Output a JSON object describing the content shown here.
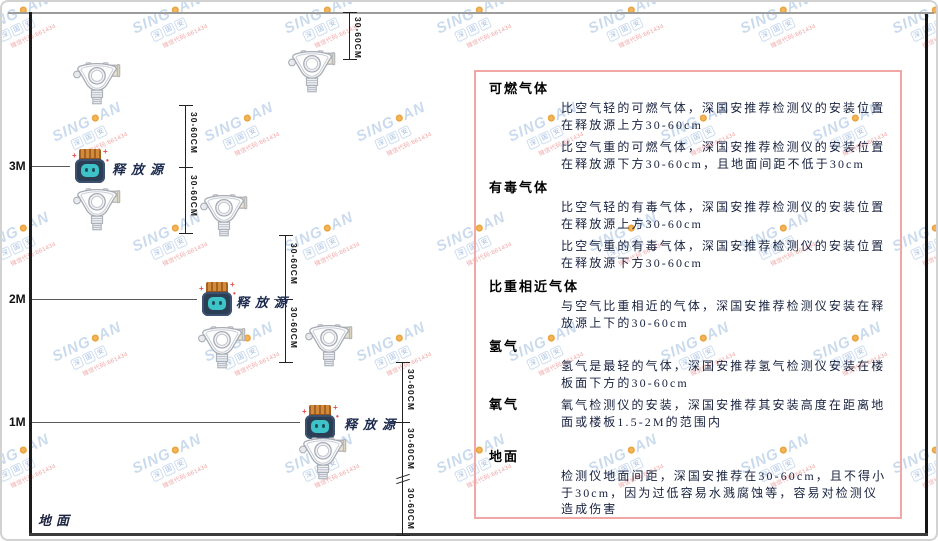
{
  "watermark": {
    "brand_prefix": "SING",
    "brand_suffix": "AN",
    "stamp_chars": [
      "深",
      "国",
      "安"
    ],
    "contact_code": "微信代码:661434"
  },
  "diagram": {
    "height_marks": [
      "3M",
      "2M",
      "1M"
    ],
    "ground_label": "地面",
    "source_label": "释放源",
    "dim_label": "30-60CM"
  },
  "panel": {
    "sections": [
      {
        "title": "可燃气体",
        "paragraphs": [
          "比空气轻的可燃气体，深国安推荐检测仪的安装位置在释放源上方30-60cm",
          "比空气重的可燃气体，深国安推荐检测仪的安装位置在释放源下方30-60cm，且地面间距不低于30cm"
        ]
      },
      {
        "title": "有毒气体",
        "paragraphs": [
          "比空气轻的有毒气体，深国安推荐检测仪的安装位置在释放源上方30-60cm",
          "比空气重的有毒气体，深国安推荐检测仪的安装位置在释放源下方30-60cm"
        ]
      },
      {
        "title": "比重相近气体",
        "paragraphs": [
          "与空气比重相近的气体，深国安推荐检测仪安装在释放源上下的30-60cm"
        ]
      },
      {
        "title": "氢气",
        "paragraphs": [
          "氢气是最轻的气体，深国安推荐氢气检测仪安装在楼板面下方的30-60cm"
        ]
      },
      {
        "title": "氧气",
        "paragraphs": [
          "氧气检测仪的安装，深国安推荐其安装高度在距离地面或楼板1.5-2M的范围内"
        ]
      },
      {
        "title": "地面",
        "paragraphs": [
          "检测仪地面间距，深国安推荐在30-60cm，且不得小于30cm，因为过低容易水溅腐蚀等，容易对检测仪造成伤害"
        ]
      }
    ]
  }
}
